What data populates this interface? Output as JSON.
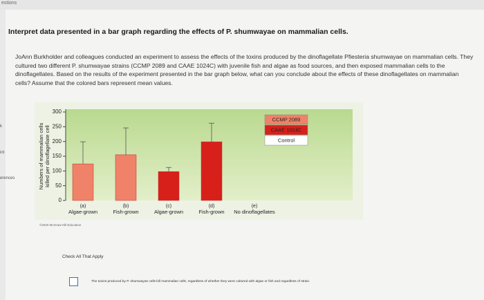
{
  "header": {
    "tab": "estions"
  },
  "sidebar": [
    "k",
    "int",
    "erences"
  ],
  "heading": "Interpret data presented in a bar graph regarding the effects of P. shumwayae on mammalian cells.",
  "paragraph": "JoAnn Burkholder and colleagues conducted an experiment to assess the effects of the toxins produced by the dinoflagellate Pfiesteria shumwayae on mammalian cells. They cultured two different P. shumwayae strains (CCMP 2089 and CAAE 1024C) with juvenile fish and algae as food sources, and then exposed mammalian cells to the dinoflagellates. Based on the results of the experiment presented in the bar graph below, what can you conclude about the effects of these dinoflagellates on mammalian cells? Assume that the colored bars represent mean values.",
  "chart_data": {
    "type": "bar",
    "ylabel": [
      "Numbers of mammalian cells",
      "killed per dinoflagellate cell"
    ],
    "category_letters": [
      "(a)",
      "(b)",
      "(c)",
      "(d)",
      "(e)"
    ],
    "categories": [
      "Algae-grown",
      "Fish-grown",
      "Algae-grown",
      "Fish-grown",
      "No dinoflagellates"
    ],
    "series": [
      {
        "name": "CCMP 2089",
        "color": "#ef8268",
        "values": [
          124,
          155,
          null,
          null,
          null
        ],
        "errors": [
          75,
          91,
          null,
          null,
          null
        ]
      },
      {
        "name": "CAAE 1024C",
        "color": "#d8201b",
        "values": [
          null,
          null,
          98,
          199,
          null
        ],
        "errors": [
          null,
          null,
          14,
          63,
          null
        ]
      },
      {
        "name": "Control",
        "color": "#ffffff",
        "values": [
          null,
          null,
          null,
          null,
          0
        ],
        "errors": [
          null,
          null,
          null,
          null,
          null
        ]
      }
    ],
    "ylim": [
      0,
      300
    ],
    "yticks": [
      0,
      50,
      100,
      150,
      200,
      250,
      300
    ]
  },
  "copyright": "©2020 McGraw-Hill Education",
  "instruction": "Check All That Apply",
  "options": [
    "The toxins produced by P. shumwayae cells kill mammalian cells, regardless of whether they were cultured with algae or fish and regardless of strain."
  ]
}
